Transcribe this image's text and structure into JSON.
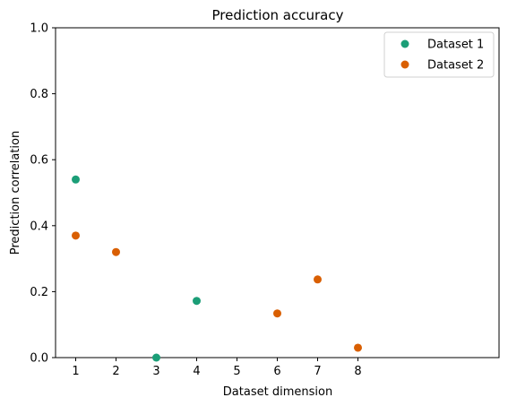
{
  "chart_data": {
    "type": "scatter",
    "title": "Prediction accuracy",
    "xlabel": "Dataset dimension",
    "ylabel": "Prediction correlation",
    "xlim": [
      0.5,
      11.5
    ],
    "ylim": [
      0,
      1.0
    ],
    "xticks": [
      1,
      2,
      3,
      4,
      5,
      6,
      7,
      8
    ],
    "yticks": [
      0.0,
      0.2,
      0.4,
      0.6,
      0.8,
      1.0
    ],
    "ytick_labels": [
      "0.0",
      "0.2",
      "0.4",
      "0.6",
      "0.8",
      "1.0"
    ],
    "grid": false,
    "legend_position": "top-right",
    "series": [
      {
        "name": "Dataset 1",
        "color": "#1b9e77",
        "points": [
          [
            1,
            0.54
          ],
          [
            3,
            0.0
          ],
          [
            4,
            0.172
          ]
        ]
      },
      {
        "name": "Dataset 2",
        "color": "#d95f02",
        "points": [
          [
            1,
            0.37
          ],
          [
            2,
            0.32
          ],
          [
            6,
            0.134
          ],
          [
            7,
            0.237
          ],
          [
            8,
            0.03
          ]
        ]
      }
    ]
  }
}
